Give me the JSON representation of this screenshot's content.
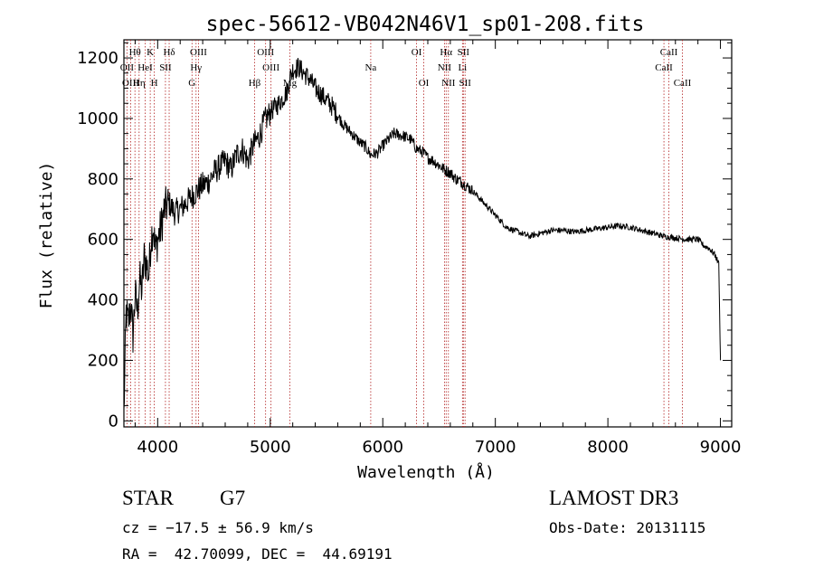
{
  "chart_data": {
    "type": "line",
    "title": "spec-56612-VB042N46V1_sp01-208.fits",
    "xlabel": "Wavelength (Å)",
    "ylabel": "Flux (relative)",
    "xlim": [
      3700,
      9100
    ],
    "ylim": [
      -20,
      1260
    ],
    "xticks": [
      4000,
      5000,
      6000,
      7000,
      8000,
      9000
    ],
    "yticks": [
      0,
      200,
      400,
      600,
      800,
      1000,
      1200
    ],
    "grid": false,
    "series": [
      {
        "name": "spectrum",
        "x": [
          3700,
          3720,
          3740,
          3760,
          3780,
          3800,
          3820,
          3840,
          3860,
          3880,
          3900,
          3920,
          3940,
          3960,
          3980,
          4000,
          4030,
          4060,
          4100,
          4150,
          4200,
          4250,
          4300,
          4350,
          4400,
          4450,
          4500,
          4550,
          4600,
          4650,
          4700,
          4750,
          4800,
          4850,
          4900,
          4950,
          5000,
          5050,
          5100,
          5150,
          5180,
          5200,
          5250,
          5300,
          5350,
          5400,
          5450,
          5500,
          5550,
          5600,
          5650,
          5700,
          5750,
          5800,
          5850,
          5890,
          5950,
          6000,
          6050,
          6100,
          6150,
          6200,
          6250,
          6300,
          6350,
          6400,
          6450,
          6500,
          6550,
          6600,
          6650,
          6700,
          6750,
          6800,
          6850,
          6900,
          6950,
          7000,
          7100,
          7200,
          7300,
          7400,
          7500,
          7600,
          7700,
          7800,
          7900,
          8000,
          8100,
          8200,
          8300,
          8400,
          8500,
          8600,
          8700,
          8800,
          8850,
          8900,
          8950,
          8985,
          9000
        ],
        "y": [
          20,
          360,
          320,
          390,
          280,
          420,
          360,
          470,
          430,
          540,
          520,
          480,
          600,
          650,
          560,
          600,
          640,
          700,
          720,
          690,
          700,
          720,
          740,
          760,
          780,
          790,
          820,
          840,
          860,
          830,
          880,
          900,
          860,
          910,
          940,
          990,
          1020,
          1040,
          1060,
          1090,
          1140,
          1160,
          1170,
          1150,
          1130,
          1100,
          1080,
          1060,
          1040,
          1010,
          980,
          960,
          940,
          920,
          905,
          880,
          885,
          910,
          930,
          950,
          945,
          940,
          930,
          900,
          890,
          870,
          860,
          845,
          830,
          820,
          800,
          790,
          775,
          760,
          740,
          720,
          700,
          680,
          640,
          625,
          610,
          620,
          630,
          630,
          625,
          630,
          635,
          640,
          645,
          640,
          630,
          620,
          610,
          605,
          600,
          600,
          580,
          570,
          550,
          520,
          200
        ]
      }
    ],
    "line_annotations": [
      {
        "label": "Hθ",
        "x": 3798,
        "row": 1
      },
      {
        "label": "OII",
        "x": 3727,
        "row": 2
      },
      {
        "label": "OIII",
        "x": 3760,
        "row": 3
      },
      {
        "label": "K",
        "x": 3934,
        "row": 1
      },
      {
        "label": "HeI",
        "x": 3889,
        "row": 2
      },
      {
        "label": "Hη",
        "x": 3835,
        "row": 3
      },
      {
        "label": "H",
        "x": 3970,
        "row": 3
      },
      {
        "label": "Hδ",
        "x": 4102,
        "row": 1
      },
      {
        "label": "SII",
        "x": 4069,
        "row": 2
      },
      {
        "label": "OIII",
        "x": 4363,
        "row": 1
      },
      {
        "label": "Hγ",
        "x": 4341,
        "row": 2
      },
      {
        "label": "G",
        "x": 4305,
        "row": 3
      },
      {
        "label": "OIII",
        "x": 4959,
        "row": 1
      },
      {
        "label": "OIII",
        "x": 5007,
        "row": 2
      },
      {
        "label": "Hβ",
        "x": 4861,
        "row": 3
      },
      {
        "label": "Mg",
        "x": 5175,
        "row": 3
      },
      {
        "label": "Na",
        "x": 5893,
        "row": 2
      },
      {
        "label": "OI",
        "x": 6300,
        "row": 1
      },
      {
        "label": "OI",
        "x": 6364,
        "row": 3
      },
      {
        "label": "Hα",
        "x": 6563,
        "row": 1
      },
      {
        "label": "SII",
        "x": 6716,
        "row": 1
      },
      {
        "label": "NII",
        "x": 6548,
        "row": 2
      },
      {
        "label": "Li",
        "x": 6708,
        "row": 2
      },
      {
        "label": "NII",
        "x": 6583,
        "row": 3
      },
      {
        "label": "SII",
        "x": 6731,
        "row": 3
      },
      {
        "label": "CaII",
        "x": 8542,
        "row": 1
      },
      {
        "label": "CaII",
        "x": 8498,
        "row": 2
      },
      {
        "label": "CaII",
        "x": 8662,
        "row": 3
      }
    ]
  },
  "info": {
    "object_class": "STAR",
    "subclass": "G7",
    "survey": "LAMOST DR3",
    "cz": "cz = −17.5 ± 56.9 km/s",
    "obs_date": "Obs-Date: 20131115",
    "coords": "RA =  42.70099, DEC =  44.69191"
  },
  "colors": {
    "axis": "#000000",
    "spectrum": "#000000",
    "line_marker": "#b22222",
    "background": "#ffffff"
  }
}
